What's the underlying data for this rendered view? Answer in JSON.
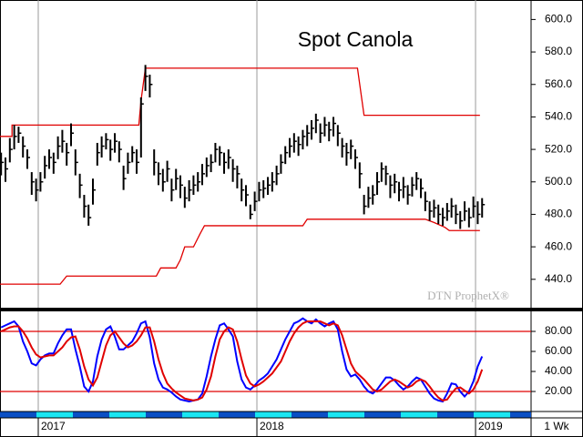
{
  "chart_data": [
    {
      "type": "ohlc",
      "title": "Spot Canola",
      "color": "#000000",
      "x": [
        2016.83,
        2016.85,
        2016.87,
        2016.89,
        2016.91,
        2016.93,
        2016.95,
        2016.97,
        2016.99,
        2017.01,
        2017.03,
        2017.05,
        2017.07,
        2017.09,
        2017.11,
        2017.13,
        2017.15,
        2017.17,
        2017.19,
        2017.21,
        2017.23,
        2017.25,
        2017.27,
        2017.29,
        2017.31,
        2017.33,
        2017.35,
        2017.37,
        2017.39,
        2017.41,
        2017.43,
        2017.45,
        2017.47,
        2017.49,
        2017.51,
        2017.53,
        2017.55,
        2017.57,
        2017.59,
        2017.61,
        2017.63,
        2017.65,
        2017.67,
        2017.69,
        2017.71,
        2017.73,
        2017.75,
        2017.77,
        2017.79,
        2017.81,
        2017.83,
        2017.85,
        2017.87,
        2017.89,
        2017.91,
        2017.93,
        2017.95,
        2017.97,
        2017.99,
        2018.01,
        2018.03,
        2018.05,
        2018.07,
        2018.09,
        2018.11,
        2018.13,
        2018.15,
        2018.17,
        2018.19,
        2018.21,
        2018.23,
        2018.25,
        2018.27,
        2018.29,
        2018.31,
        2018.33,
        2018.35,
        2018.37,
        2018.39,
        2018.41,
        2018.43,
        2018.45,
        2018.47,
        2018.49,
        2018.51,
        2018.53,
        2018.55,
        2018.57,
        2018.59,
        2018.61,
        2018.63,
        2018.65,
        2018.67,
        2018.69,
        2018.71,
        2018.73,
        2018.75,
        2018.77,
        2018.79,
        2018.81,
        2018.83,
        2018.85,
        2018.87,
        2018.89,
        2018.91,
        2018.93,
        2018.95,
        2018.97,
        2018.99,
        2019.01,
        2019.03
      ],
      "high": [
        518,
        515,
        527,
        535,
        534,
        528,
        520,
        506,
        502,
        506,
        516,
        520,
        518,
        528,
        532,
        524,
        536,
        520,
        505,
        492,
        486,
        502,
        524,
        528,
        530,
        526,
        530,
        525,
        510,
        518,
        522,
        520,
        552,
        572,
        566,
        520,
        512,
        508,
        513,
        502,
        508,
        504,
        497,
        501,
        504,
        506,
        511,
        515,
        517,
        524,
        522,
        518,
        520,
        514,
        510,
        502,
        498,
        486,
        494,
        500,
        501,
        503,
        506,
        510,
        517,
        522,
        527,
        530,
        528,
        532,
        535,
        538,
        542,
        536,
        540,
        537,
        540,
        535,
        527,
        524,
        526,
        520,
        512,
        492,
        497,
        498,
        506,
        512,
        510,
        504,
        505,
        500,
        503,
        498,
        503,
        506,
        502,
        494,
        488,
        489,
        486,
        484,
        487,
        490,
        486,
        482,
        488,
        484,
        491,
        488,
        490
      ],
      "low": [
        504,
        500,
        512,
        520,
        524,
        515,
        508,
        492,
        488,
        494,
        502,
        508,
        505,
        514,
        518,
        510,
        522,
        504,
        490,
        478,
        473,
        486,
        510,
        515,
        520,
        513,
        518,
        512,
        495,
        505,
        512,
        505,
        515,
        556,
        552,
        504,
        498,
        494,
        500,
        488,
        495,
        490,
        484,
        488,
        492,
        494,
        498,
        503,
        506,
        512,
        510,
        505,
        508,
        500,
        496,
        488,
        485,
        477,
        482,
        488,
        490,
        492,
        494,
        498,
        505,
        511,
        515,
        518,
        516,
        520,
        522,
        526,
        530,
        524,
        528,
        525,
        528,
        522,
        515,
        510,
        514,
        508,
        496,
        480,
        484,
        486,
        492,
        500,
        498,
        490,
        493,
        488,
        490,
        486,
        491,
        495,
        490,
        482,
        476,
        478,
        474,
        473,
        476,
        478,
        474,
        471,
        476,
        472,
        478,
        474,
        478
      ],
      "close": [
        512,
        508,
        520,
        528,
        530,
        522,
        515,
        500,
        495,
        500,
        510,
        515,
        512,
        522,
        525,
        518,
        530,
        512,
        498,
        485,
        478,
        495,
        518,
        522,
        526,
        520,
        525,
        520,
        502,
        512,
        518,
        512,
        548,
        565,
        560,
        512,
        505,
        500,
        508,
        495,
        502,
        498,
        490,
        495,
        498,
        500,
        505,
        510,
        512,
        520,
        518,
        512,
        515,
        508,
        505,
        495,
        492,
        480,
        488,
        495,
        496,
        498,
        500,
        505,
        512,
        518,
        522,
        525,
        523,
        528,
        530,
        533,
        538,
        530,
        535,
        532,
        536,
        530,
        522,
        518,
        522,
        515,
        505,
        485,
        490,
        492,
        500,
        508,
        505,
        498,
        500,
        495,
        497,
        492,
        498,
        502,
        496,
        488,
        482,
        484,
        480,
        478,
        482,
        485,
        480,
        476,
        482,
        478,
        485,
        480,
        486
      ],
      "lines": [
        {
          "color": "#e00000",
          "x": [
            2016.81,
            2016.88,
            2016.88,
            2017.46,
            2017.47,
            2017.49,
            2018.46,
            2018.49,
            2019.02
          ],
          "values": [
            528,
            528,
            535,
            535,
            550,
            570,
            570,
            541,
            541
          ]
        },
        {
          "color": "#e00000",
          "x": [
            2016.81,
            2017.1,
            2017.13,
            2017.54,
            2017.56,
            2017.63,
            2017.65,
            2017.67,
            2017.71,
            2017.74,
            2017.76,
            2018.21,
            2018.23,
            2018.77,
            2018.81,
            2018.86,
            2018.88,
            2019.02
          ],
          "values": [
            437,
            437,
            442,
            442,
            447,
            447,
            452,
            460,
            460,
            468,
            473,
            473,
            477,
            477,
            475,
            472,
            470,
            470
          ]
        }
      ],
      "xlim": [
        2016.825,
        2019.254
      ],
      "xticks": [
        2017,
        2018,
        2019
      ],
      "ylim": [
        422.5,
        612
      ],
      "yticks": [
        {
          "value": 440,
          "label": "440.0"
        },
        {
          "value": 460,
          "label": "460.0"
        },
        {
          "value": 480,
          "label": "480.0"
        },
        {
          "value": 500,
          "label": "500.0"
        },
        {
          "value": 520,
          "label": "520.0"
        },
        {
          "value": 540,
          "label": "540.0"
        },
        {
          "value": 560,
          "label": "560.0"
        },
        {
          "value": 580,
          "label": "580.0"
        },
        {
          "value": 600,
          "label": "600.0"
        }
      ]
    },
    {
      "type": "line",
      "x": [
        2016.83,
        2016.85,
        2016.87,
        2016.89,
        2016.91,
        2016.93,
        2016.95,
        2016.97,
        2016.99,
        2017.01,
        2017.03,
        2017.05,
        2017.07,
        2017.09,
        2017.11,
        2017.13,
        2017.15,
        2017.17,
        2017.19,
        2017.21,
        2017.23,
        2017.25,
        2017.27,
        2017.29,
        2017.31,
        2017.33,
        2017.35,
        2017.37,
        2017.39,
        2017.41,
        2017.43,
        2017.45,
        2017.47,
        2017.49,
        2017.51,
        2017.53,
        2017.55,
        2017.57,
        2017.59,
        2017.61,
        2017.63,
        2017.65,
        2017.67,
        2017.69,
        2017.71,
        2017.73,
        2017.75,
        2017.77,
        2017.79,
        2017.81,
        2017.83,
        2017.85,
        2017.87,
        2017.89,
        2017.91,
        2017.93,
        2017.95,
        2017.97,
        2017.99,
        2018.01,
        2018.03,
        2018.05,
        2018.07,
        2018.09,
        2018.11,
        2018.13,
        2018.15,
        2018.17,
        2018.19,
        2018.21,
        2018.23,
        2018.25,
        2018.27,
        2018.29,
        2018.31,
        2018.33,
        2018.35,
        2018.37,
        2018.39,
        2018.41,
        2018.43,
        2018.45,
        2018.47,
        2018.49,
        2018.51,
        2018.53,
        2018.55,
        2018.57,
        2018.59,
        2018.61,
        2018.63,
        2018.65,
        2018.67,
        2018.69,
        2018.71,
        2018.73,
        2018.75,
        2018.77,
        2018.79,
        2018.81,
        2018.83,
        2018.85,
        2018.87,
        2018.89,
        2018.91,
        2018.93,
        2018.95,
        2018.97,
        2018.99,
        2019.01,
        2019.03
      ],
      "series": [
        {
          "color": "#0000ff",
          "values": [
            84,
            86,
            88,
            90,
            85,
            70,
            60,
            48,
            46,
            52,
            56,
            58,
            58,
            68,
            76,
            82,
            82,
            62,
            45,
            25,
            20,
            30,
            55,
            72,
            82,
            85,
            75,
            62,
            62,
            66,
            70,
            78,
            88,
            90,
            74,
            48,
            32,
            24,
            22,
            19,
            15,
            12,
            11,
            10,
            11,
            12,
            18,
            35,
            55,
            72,
            86,
            88,
            82,
            75,
            50,
            32,
            24,
            22,
            26,
            31,
            34,
            38,
            45,
            52,
            62,
            72,
            80,
            88,
            90,
            93,
            90,
            88,
            92,
            88,
            85,
            88,
            90,
            82,
            60,
            42,
            35,
            37,
            32,
            25,
            20,
            18,
            22,
            28,
            34,
            34,
            31,
            26,
            22,
            25,
            30,
            34,
            32,
            25,
            18,
            13,
            11,
            10,
            18,
            28,
            27,
            20,
            15,
            20,
            30,
            45,
            55
          ]
        },
        {
          "color": "#e00000",
          "values": [
            80,
            82,
            84,
            85,
            85,
            80,
            73,
            64,
            57,
            54,
            55,
            56,
            56,
            60,
            64,
            70,
            74,
            75,
            62,
            45,
            32,
            26,
            34,
            50,
            66,
            76,
            80,
            74,
            68,
            64,
            66,
            70,
            76,
            84,
            84,
            70,
            52,
            38,
            28,
            23,
            19,
            16,
            13,
            12,
            11,
            12,
            14,
            22,
            35,
            55,
            72,
            80,
            84,
            82,
            70,
            52,
            36,
            28,
            25,
            27,
            30,
            34,
            38,
            44,
            50,
            60,
            70,
            78,
            84,
            88,
            90,
            90,
            90,
            90,
            88,
            86,
            88,
            86,
            76,
            62,
            48,
            40,
            36,
            32,
            27,
            22,
            20,
            22,
            26,
            30,
            32,
            30,
            27,
            24,
            26,
            30,
            32,
            30,
            25,
            19,
            14,
            11,
            12,
            18,
            23,
            24,
            21,
            18,
            22,
            30,
            42
          ]
        }
      ],
      "levels": [
        80,
        20
      ],
      "level_color": "#e00000",
      "xlim": [
        2016.825,
        2019.254
      ],
      "xticks": [
        2017,
        2018,
        2019
      ],
      "ylim": [
        0,
        100
      ],
      "yticks": [
        {
          "value": 20,
          "label": "20.00"
        },
        {
          "value": 40,
          "label": "40.00"
        },
        {
          "value": 60,
          "label": "60.00"
        },
        {
          "value": 80,
          "label": "80.00"
        }
      ]
    }
  ],
  "watermark": "DTN ProphetX®",
  "period": "1 Wk"
}
